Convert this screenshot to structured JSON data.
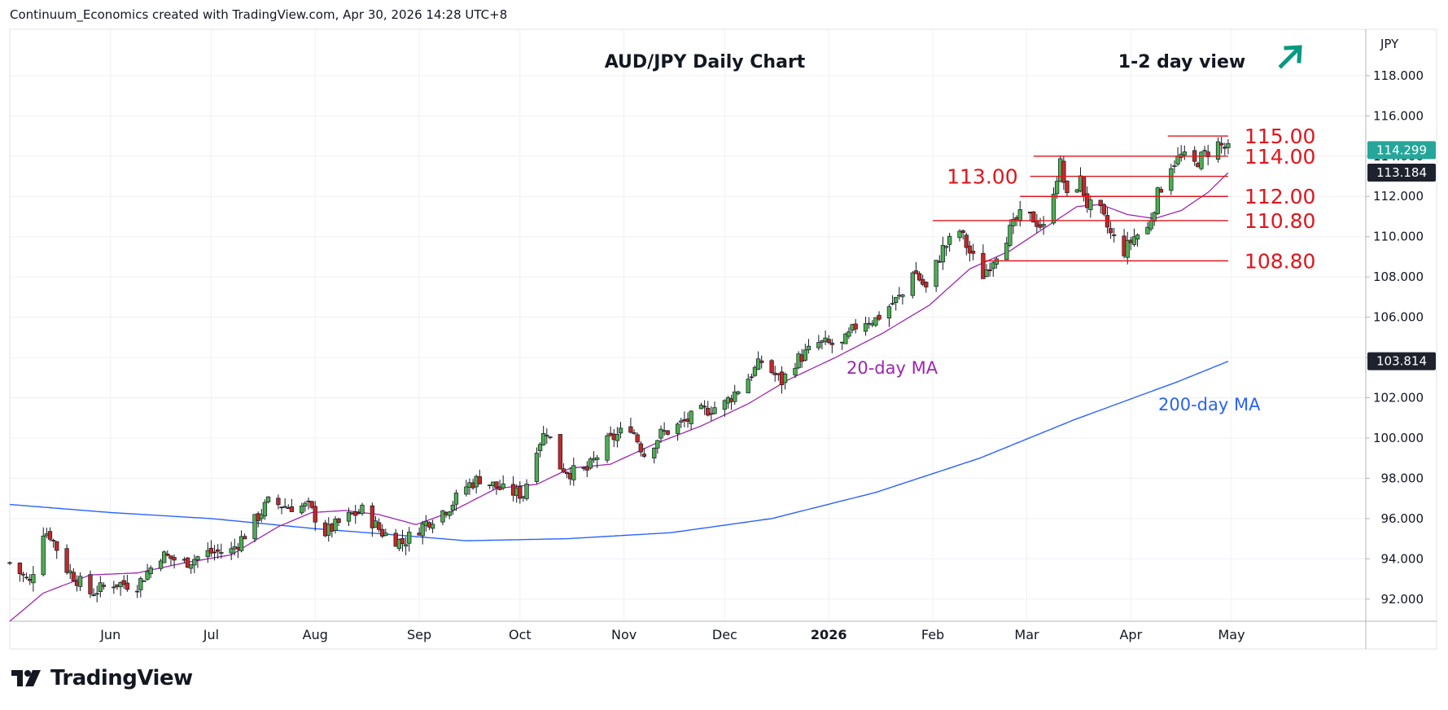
{
  "header": {
    "credit": "Continuum_Economics created with TradingView.com, Apr 30, 2026 14:28 UTC+8"
  },
  "branding": {
    "logo_text": "TradingView"
  },
  "colors": {
    "up": "#26a69a",
    "up_fill": "#4caf50",
    "down": "#c62828",
    "ma20": "#9c27b0",
    "ma200": "#2962ff",
    "levels": "#e0161d",
    "grid": "#eef0f4",
    "arrow": "#089981",
    "price_tag": "#26a69a",
    "tag_dark": "#1e222d"
  },
  "chart_data": {
    "type": "candlestick",
    "title": "AUD/JPY Daily Chart",
    "view_label": "1-2 day view",
    "view_icon": "arrow-up-right-icon",
    "currency": "JPY",
    "ylim": [
      90.9,
      120.3
    ],
    "y_ticks": [
      "118.000",
      "116.000",
      "114.000",
      "112.000",
      "110.000",
      "108.000",
      "106.000",
      "104.000",
      "102.000",
      "100.000",
      "98.000",
      "96.000",
      "94.000",
      "92.000"
    ],
    "x_ticks": [
      {
        "label": "Jun",
        "date": "2025-06-01"
      },
      {
        "label": "Jul",
        "date": "2025-07-01"
      },
      {
        "label": "Aug",
        "date": "2025-08-01"
      },
      {
        "label": "Sep",
        "date": "2025-09-01"
      },
      {
        "label": "Oct",
        "date": "2025-10-01"
      },
      {
        "label": "Nov",
        "date": "2025-11-01"
      },
      {
        "label": "Dec",
        "date": "2025-12-01"
      },
      {
        "label": "2026",
        "date": "2026-01-01"
      },
      {
        "label": "Feb",
        "date": "2026-02-01"
      },
      {
        "label": "Mar",
        "date": "2026-03-01"
      },
      {
        "label": "Apr",
        "date": "2026-04-01"
      },
      {
        "label": "May",
        "date": "2026-05-01"
      }
    ],
    "x_range": [
      "2025-05-02",
      "2026-06-10"
    ],
    "price_path": [
      [
        "2025-05-02",
        93.8
      ],
      [
        "2025-05-08",
        92.8
      ],
      [
        "2025-05-12",
        95.4
      ],
      [
        "2025-05-14",
        95.2
      ],
      [
        "2025-05-19",
        93.5
      ],
      [
        "2025-05-26",
        92.3
      ],
      [
        "2025-06-02",
        92.8
      ],
      [
        "2025-06-09",
        92.7
      ],
      [
        "2025-06-16",
        94.2
      ],
      [
        "2025-06-23",
        93.8
      ],
      [
        "2025-06-30",
        94.3
      ],
      [
        "2025-07-07",
        94.4
      ],
      [
        "2025-07-11",
        95.2
      ],
      [
        "2025-07-18",
        96.8
      ],
      [
        "2025-07-24",
        96.6
      ],
      [
        "2025-07-30",
        96.6
      ],
      [
        "2025-08-04",
        95.3
      ],
      [
        "2025-08-10",
        96.0
      ],
      [
        "2025-08-15",
        96.4
      ],
      [
        "2025-08-21",
        95.3
      ],
      [
        "2025-08-27",
        94.8
      ],
      [
        "2025-09-03",
        95.8
      ],
      [
        "2025-09-10",
        96.6
      ],
      [
        "2025-09-15",
        97.6
      ],
      [
        "2025-09-19",
        98.0
      ],
      [
        "2025-09-26",
        97.4
      ],
      [
        "2025-10-02",
        97.2
      ],
      [
        "2025-10-06",
        99.6
      ],
      [
        "2025-10-09",
        100.4
      ],
      [
        "2025-10-13",
        98.6
      ],
      [
        "2025-10-16",
        98.3
      ],
      [
        "2025-10-21",
        98.4
      ],
      [
        "2025-10-27",
        99.8
      ],
      [
        "2025-11-03",
        100.6
      ],
      [
        "2025-11-07",
        99.2
      ],
      [
        "2025-11-12",
        100.2
      ],
      [
        "2025-11-17",
        100.6
      ],
      [
        "2025-11-24",
        101.3
      ],
      [
        "2025-12-01",
        101.7
      ],
      [
        "2025-12-08",
        103.0
      ],
      [
        "2025-12-12",
        103.8
      ],
      [
        "2025-12-18",
        102.8
      ],
      [
        "2025-12-22",
        103.8
      ],
      [
        "2025-12-29",
        104.7
      ],
      [
        "2026-01-05",
        104.6
      ],
      [
        "2026-01-10",
        105.8
      ],
      [
        "2026-01-15",
        105.9
      ],
      [
        "2026-01-20",
        106.7
      ],
      [
        "2026-01-23",
        107.1
      ],
      [
        "2026-01-26",
        108.4
      ],
      [
        "2026-01-30",
        107.4
      ],
      [
        "2026-02-04",
        109.4
      ],
      [
        "2026-02-09",
        110.3
      ],
      [
        "2026-02-12",
        109.2
      ],
      [
        "2026-02-16",
        108.1
      ],
      [
        "2026-02-20",
        109.2
      ],
      [
        "2026-02-24",
        110.3
      ],
      [
        "2026-02-27",
        111.0
      ],
      [
        "2026-03-03",
        110.9
      ],
      [
        "2026-03-06",
        110.4
      ],
      [
        "2026-03-09",
        112.4
      ],
      [
        "2026-03-11",
        113.6
      ],
      [
        "2026-03-13",
        111.9
      ],
      [
        "2026-03-17",
        112.8
      ],
      [
        "2026-03-19",
        111.6
      ],
      [
        "2026-03-23",
        111.2
      ],
      [
        "2026-03-26",
        110.1
      ],
      [
        "2026-03-30",
        109.3
      ],
      [
        "2026-04-02",
        110.0
      ],
      [
        "2026-04-06",
        110.4
      ],
      [
        "2026-04-09",
        112.1
      ],
      [
        "2026-04-13",
        113.6
      ],
      [
        "2026-04-16",
        114.0
      ],
      [
        "2026-04-20",
        113.6
      ],
      [
        "2026-04-23",
        114.1
      ],
      [
        "2026-04-27",
        114.6
      ],
      [
        "2026-04-30",
        114.3
      ]
    ],
    "ma20_path": [
      [
        "2025-05-02",
        90.9
      ],
      [
        "2025-05-12",
        92.3
      ],
      [
        "2025-05-26",
        93.2
      ],
      [
        "2025-06-09",
        93.3
      ],
      [
        "2025-06-23",
        93.8
      ],
      [
        "2025-07-07",
        94.2
      ],
      [
        "2025-07-21",
        95.6
      ],
      [
        "2025-07-31",
        96.3
      ],
      [
        "2025-08-10",
        96.4
      ],
      [
        "2025-08-20",
        96.2
      ],
      [
        "2025-08-31",
        95.7
      ],
      [
        "2025-09-10",
        96.3
      ],
      [
        "2025-09-24",
        97.5
      ],
      [
        "2025-10-06",
        97.7
      ],
      [
        "2025-10-16",
        98.5
      ],
      [
        "2025-10-28",
        98.7
      ],
      [
        "2025-11-10",
        99.7
      ],
      [
        "2025-11-24",
        100.6
      ],
      [
        "2025-12-08",
        101.7
      ],
      [
        "2025-12-20",
        102.9
      ],
      [
        "2026-01-03",
        104.0
      ],
      [
        "2026-01-17",
        105.2
      ],
      [
        "2026-01-31",
        106.6
      ],
      [
        "2026-02-12",
        108.4
      ],
      [
        "2026-02-24",
        109.3
      ],
      [
        "2026-03-06",
        110.4
      ],
      [
        "2026-03-16",
        111.5
      ],
      [
        "2026-03-23",
        111.6
      ],
      [
        "2026-03-31",
        111.1
      ],
      [
        "2026-04-08",
        110.9
      ],
      [
        "2026-04-16",
        111.3
      ],
      [
        "2026-04-24",
        112.2
      ],
      [
        "2026-04-30",
        113.18
      ]
    ],
    "ma200_path": [
      [
        "2025-05-02",
        96.7
      ],
      [
        "2025-06-01",
        96.3
      ],
      [
        "2025-07-01",
        96.0
      ],
      [
        "2025-08-01",
        95.5
      ],
      [
        "2025-08-24",
        95.2
      ],
      [
        "2025-09-15",
        94.9
      ],
      [
        "2025-10-15",
        95.0
      ],
      [
        "2025-11-15",
        95.3
      ],
      [
        "2025-12-15",
        96.0
      ],
      [
        "2026-01-15",
        97.3
      ],
      [
        "2026-02-15",
        99.0
      ],
      [
        "2026-03-15",
        100.9
      ],
      [
        "2026-04-15",
        102.8
      ],
      [
        "2026-04-30",
        103.81
      ]
    ],
    "levels": [
      {
        "label": "115.00",
        "value": 115.0,
        "from": "2026-04-12",
        "to": "2026-04-30",
        "label_side": "right"
      },
      {
        "label": "114.00",
        "value": 114.0,
        "from": "2026-03-03",
        "to": "2026-04-30",
        "label_side": "right"
      },
      {
        "label": "113.00",
        "value": 113.0,
        "from": "2026-03-02",
        "to": "2026-04-30",
        "label_side": "left"
      },
      {
        "label": "112.00",
        "value": 112.0,
        "from": "2026-02-27",
        "to": "2026-04-30",
        "label_side": "right"
      },
      {
        "label": "110.80",
        "value": 110.8,
        "from": "2026-02-01",
        "to": "2026-04-30",
        "label_side": "right"
      },
      {
        "label": "108.80",
        "value": 108.8,
        "from": "2026-02-16",
        "to": "2026-04-30",
        "label_side": "right"
      }
    ],
    "annotations": [
      {
        "text": "20-day MA",
        "color": "#9c27b0"
      },
      {
        "text": "200-day MA",
        "color": "#2962ff"
      }
    ],
    "price_tags": [
      {
        "label": "114.299",
        "value": 114.299,
        "kind": "last"
      },
      {
        "label": "113.184",
        "value": 113.184,
        "kind": "ma20"
      },
      {
        "label": "103.814",
        "value": 103.814,
        "kind": "ma200"
      }
    ]
  }
}
